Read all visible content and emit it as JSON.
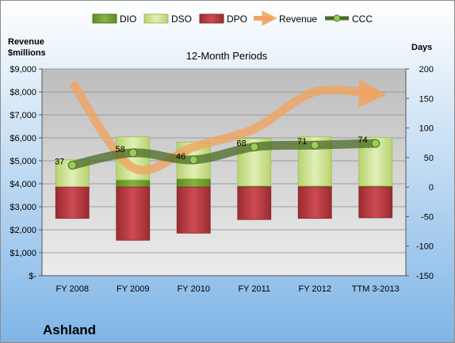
{
  "chart_data": {
    "type": "bar",
    "subtitle": "12-Month Periods",
    "company": "Ashland",
    "categories": [
      "FY 2008",
      "FY 2009",
      "FY 2010",
      "FY 2011",
      "FY 2012",
      "TTM 3-2013"
    ],
    "left_axis": {
      "label_line1": "Revenue",
      "label_line2": "$millions",
      "ylim": [
        0,
        9000
      ],
      "ticks": [
        0,
        1000,
        2000,
        3000,
        4000,
        5000,
        6000,
        7000,
        8000,
        9000
      ],
      "tick_labels": [
        "$-",
        "$1,000",
        "$2,000",
        "$3,000",
        "$4,000",
        "$5,000",
        "$6,000",
        "$7,000",
        "$8,000",
        "$9,000"
      ]
    },
    "right_axis": {
      "label": "Days",
      "ylim": [
        -150,
        200
      ],
      "ticks": [
        -150,
        -100,
        -50,
        0,
        50,
        100,
        150,
        200
      ],
      "tick_labels": [
        "-150",
        "-100",
        "-50",
        "0",
        "50",
        "100",
        "150",
        "200"
      ]
    },
    "series": [
      {
        "name": "DIO",
        "axis": "right",
        "kind": "stacked-bar",
        "values": [
          -5,
          12,
          14,
          2,
          2,
          2
        ]
      },
      {
        "name": "DSO",
        "axis": "right",
        "kind": "stacked-bar",
        "values": [
          46,
          73,
          62,
          80,
          83,
          82
        ]
      },
      {
        "name": "DPO",
        "axis": "right",
        "kind": "negative-bar",
        "values": [
          -53,
          -90,
          -78,
          -55,
          -53,
          -52
        ]
      },
      {
        "name": "Revenue",
        "axis": "left",
        "kind": "line",
        "values": [
          8400,
          4700,
          5600,
          6400,
          8000,
          7900
        ]
      },
      {
        "name": "CCC",
        "axis": "right",
        "kind": "line",
        "values": [
          37,
          58,
          46,
          68,
          71,
          74
        ],
        "labels": [
          "37",
          "58",
          "46",
          "68",
          "71",
          "74"
        ]
      }
    ],
    "legend": [
      "DIO",
      "DSO",
      "DPO",
      "Revenue",
      "CCC"
    ],
    "legend_position": "top",
    "grid": true,
    "colors": {
      "DIO": "#6f9a2e",
      "DSO": "#cfe39a",
      "DPO": "#b8383e",
      "Revenue": "#f0a460",
      "CCC": "#4a6b26",
      "plot_bg": "#c9c9c9",
      "background_top": "#ffffff",
      "background_bottom": "#7fb5e6"
    }
  }
}
